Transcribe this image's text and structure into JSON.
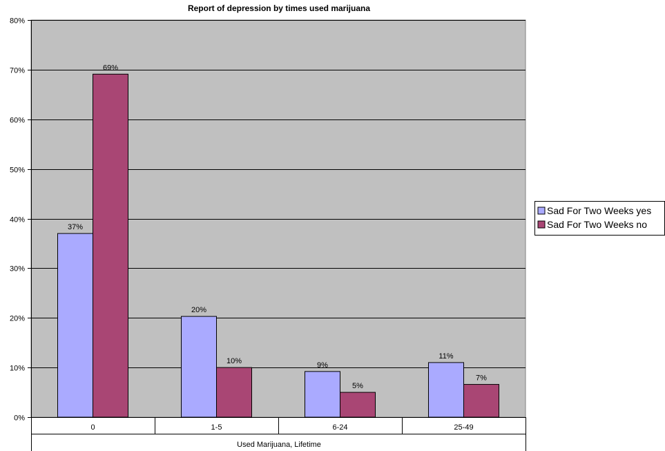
{
  "chart_data": {
    "type": "bar",
    "title": "Report of depression by times used marijuana",
    "xlabel": "Used Marijuana, Lifetime",
    "ylabel": "",
    "categories": [
      "0",
      "1-5",
      "6-24",
      "25-49"
    ],
    "series": [
      {
        "name": "Sad For Two Weeks yes",
        "color": "#aaaaff",
        "values": [
          37,
          20.3,
          9.2,
          11
        ],
        "labels": [
          "37%",
          "20%",
          "9%",
          "11%"
        ]
      },
      {
        "name": "Sad For Two Weeks no",
        "color": "#a94674",
        "values": [
          69.1,
          10,
          5,
          6.6
        ],
        "labels": [
          "69%",
          "10%",
          "5%",
          "7%"
        ]
      }
    ],
    "ylim": [
      0,
      80
    ],
    "ytick_step": 10,
    "ytick_format": "percent",
    "plot_background": "#c0c0c0",
    "grid": true,
    "legend": "right"
  }
}
